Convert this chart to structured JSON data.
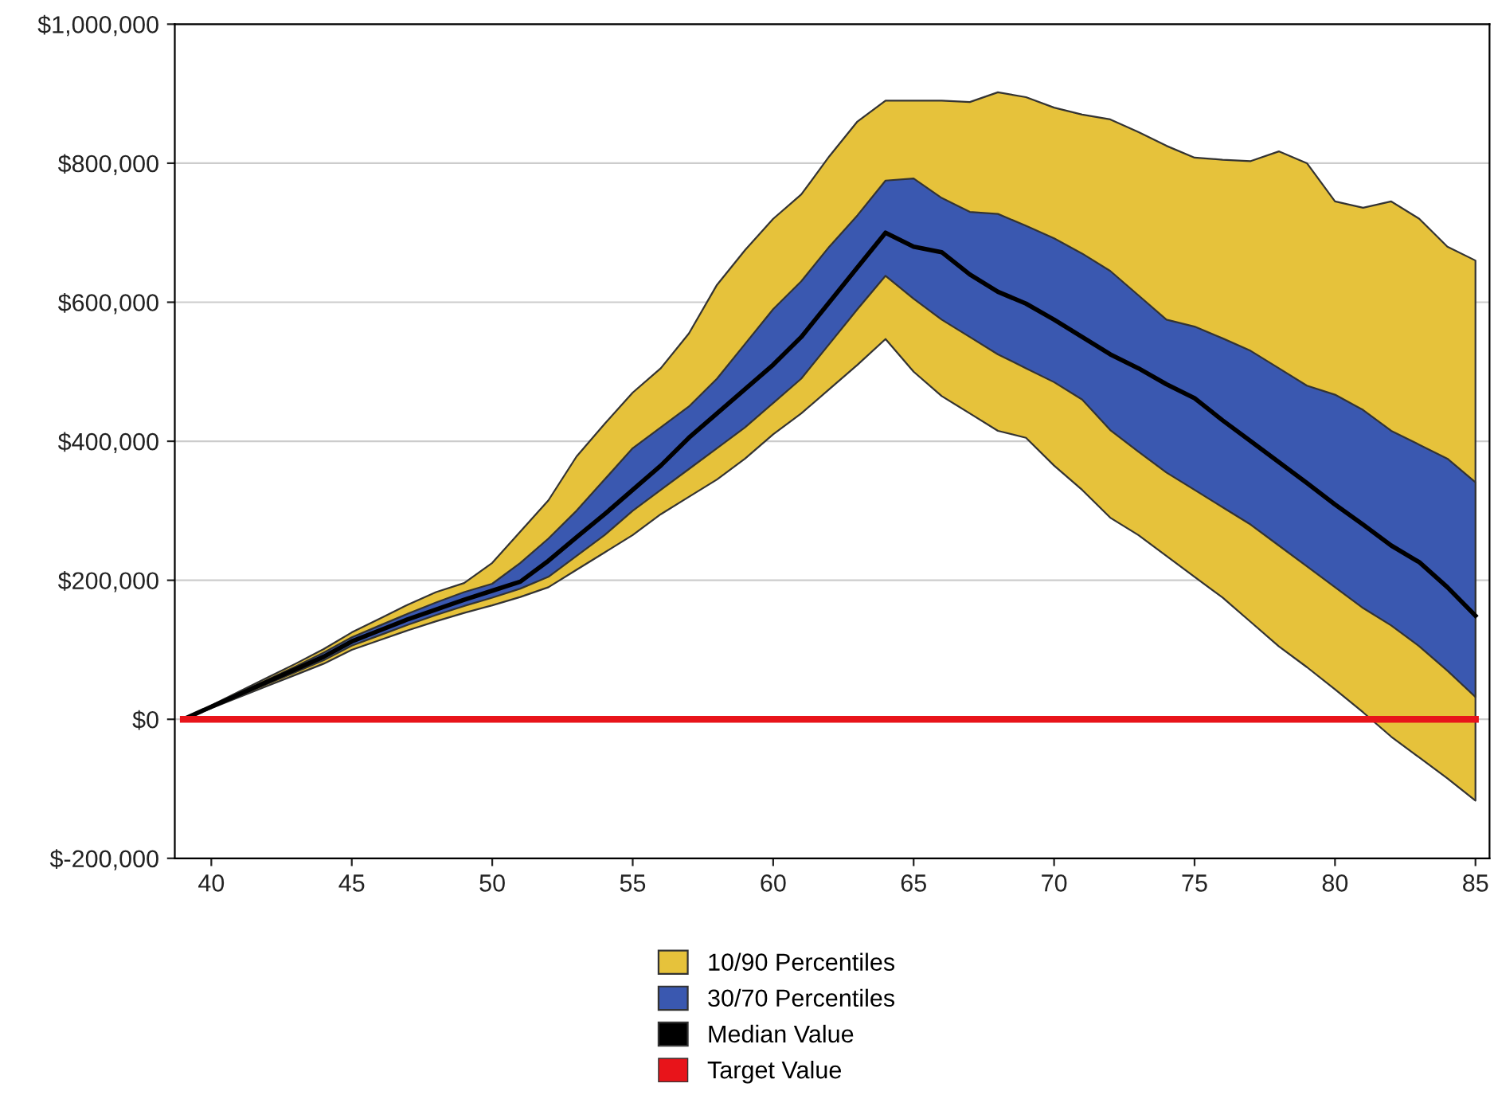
{
  "chart_data": {
    "type": "line",
    "x": [
      39,
      40,
      41,
      42,
      43,
      44,
      45,
      46,
      47,
      48,
      49,
      50,
      51,
      52,
      53,
      54,
      55,
      56,
      57,
      58,
      59,
      60,
      61,
      62,
      63,
      64,
      65,
      66,
      67,
      68,
      69,
      70,
      71,
      72,
      73,
      74,
      75,
      76,
      77,
      78,
      79,
      80,
      81,
      82,
      83,
      84,
      85
    ],
    "series": [
      {
        "name": "10/90 Percentiles",
        "color": "#e6c23b",
        "values": [
          null,
          null,
          null,
          null,
          null,
          null,
          null,
          null,
          null,
          null,
          null,
          null,
          null,
          null,
          null,
          null,
          null,
          null,
          null,
          null,
          null,
          null,
          null,
          null,
          null,
          null,
          null,
          null,
          null,
          null,
          null,
          null,
          null,
          null,
          null,
          null,
          null,
          null,
          null,
          null,
          null,
          null,
          null,
          null,
          null,
          null,
          null
        ],
        "lower": [
          0,
          16000,
          32000,
          48000,
          64000,
          80000,
          100000,
          114000,
          128000,
          141000,
          153000,
          164000,
          176000,
          190000,
          215000,
          240000,
          265000,
          295000,
          320000,
          345000,
          375000,
          410000,
          440000,
          475000,
          510000,
          547000,
          500000,
          465000,
          440000,
          415000,
          405000,
          365000,
          330000,
          290000,
          265000,
          235000,
          205000,
          175000,
          140000,
          105000,
          75000,
          43000,
          10000,
          -25000,
          -55000,
          -85000,
          -117000
        ],
        "upper": [
          0,
          20000,
          40000,
          60000,
          80000,
          101000,
          125000,
          145000,
          165000,
          183000,
          196000,
          225000,
          270000,
          315000,
          378000,
          425000,
          470000,
          505000,
          555000,
          625000,
          675000,
          720000,
          755000,
          810000,
          860000,
          890000,
          890000,
          890000,
          888000,
          902000,
          895000,
          880000,
          870000,
          863000,
          845000,
          825000,
          808000,
          805000,
          803000,
          817000,
          800000,
          745000,
          736000,
          745000,
          720000,
          680000,
          660000
        ]
      },
      {
        "name": "30/70 Percentiles",
        "color": "#3a58b0",
        "values": [
          null,
          null,
          null,
          null,
          null,
          null,
          null,
          null,
          null,
          null,
          null,
          null,
          null,
          null,
          null,
          null,
          null,
          null,
          null,
          null,
          null,
          null,
          null,
          null,
          null,
          null,
          null,
          null,
          null,
          null,
          null,
          null,
          null,
          null,
          null,
          null,
          null,
          null,
          null,
          null,
          null,
          null,
          null,
          null,
          null,
          null,
          null
        ],
        "lower": [
          0,
          17000,
          34000,
          51000,
          68000,
          85000,
          106000,
          121000,
          136000,
          150000,
          163000,
          175000,
          188000,
          205000,
          235000,
          265000,
          300000,
          330000,
          360000,
          390000,
          420000,
          455000,
          490000,
          540000,
          590000,
          638000,
          605000,
          575000,
          550000,
          525000,
          505000,
          485000,
          460000,
          416000,
          385000,
          355000,
          330000,
          305000,
          280000,
          250000,
          220000,
          190000,
          160000,
          135000,
          105000,
          70000,
          32000
        ],
        "upper": [
          0,
          19000,
          38000,
          57000,
          76000,
          96000,
          118000,
          135000,
          152000,
          168000,
          183000,
          195000,
          225000,
          260000,
          300000,
          345000,
          390000,
          420000,
          450000,
          490000,
          540000,
          590000,
          630000,
          680000,
          725000,
          775000,
          778000,
          750000,
          730000,
          727000,
          710000,
          692000,
          670000,
          645000,
          610000,
          575000,
          565000,
          548000,
          530000,
          505000,
          480000,
          467000,
          445000,
          415000,
          395000,
          375000,
          341000
        ]
      },
      {
        "name": "Median Value",
        "color": "#000000",
        "values": [
          0,
          18000,
          36000,
          54000,
          72000,
          90000,
          112000,
          128000,
          144000,
          158000,
          172000,
          185000,
          198000,
          228000,
          262000,
          295000,
          330000,
          365000,
          405000,
          440000,
          475000,
          510000,
          550000,
          600000,
          650000,
          700000,
          680000,
          672000,
          640000,
          615000,
          598000,
          575000,
          550000,
          525000,
          505000,
          482000,
          462000,
          430000,
          400000,
          370000,
          340000,
          309000,
          280000,
          250000,
          226000,
          190000,
          149000
        ]
      }
    ],
    "ref_lines": [
      {
        "axis": "y",
        "value": 0,
        "label": "Target Value",
        "color": "#e8141a"
      }
    ],
    "xlim": [
      38.7,
      85.5
    ],
    "xticks": [
      40,
      45,
      50,
      55,
      60,
      65,
      70,
      75,
      80,
      85
    ],
    "ylim": [
      -200000,
      1000000
    ],
    "yticks": [
      {
        "value": -200000,
        "label": "$-200,000"
      },
      {
        "value": 0,
        "label": "$0"
      },
      {
        "value": 200000,
        "label": "$200,000"
      },
      {
        "value": 400000,
        "label": "$400,000"
      },
      {
        "value": 600000,
        "label": "$600,000"
      },
      {
        "value": 800000,
        "label": "$800,000"
      },
      {
        "value": 1000000,
        "label": "$1,000,000"
      }
    ],
    "grid": "y",
    "legend": "bottom"
  }
}
